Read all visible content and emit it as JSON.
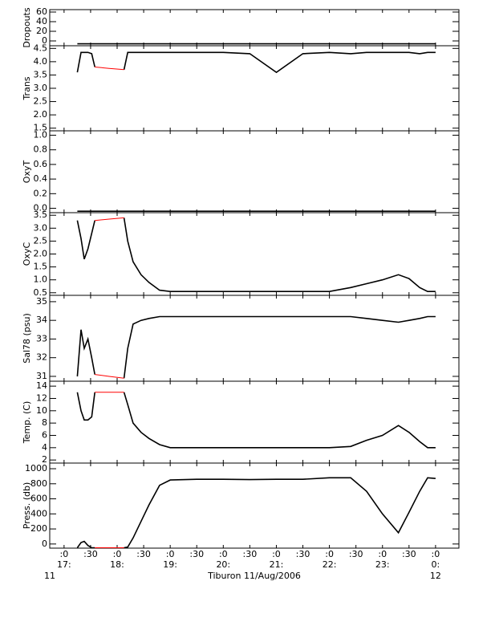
{
  "x_axis": {
    "xlim": [
      16.73,
      24.44
    ],
    "xticks": [
      {
        "value": 17,
        "label": ":0"
      },
      {
        "value": 17.5,
        "label": ":30"
      },
      {
        "value": 18,
        "label": ":0"
      },
      {
        "value": 18.5,
        "label": ":30"
      },
      {
        "value": 19,
        "label": ":0"
      },
      {
        "value": 19.5,
        "label": ":30"
      },
      {
        "value": 20,
        "label": ":0"
      },
      {
        "value": 20.5,
        "label": ":30"
      },
      {
        "value": 21,
        "label": ":0"
      },
      {
        "value": 21.5,
        "label": ":30"
      },
      {
        "value": 22,
        "label": ":0"
      },
      {
        "value": 22.5,
        "label": ":30"
      },
      {
        "value": 23,
        "label": ":0"
      },
      {
        "value": 23.5,
        "label": ":30"
      },
      {
        "value": 24,
        "label": ":0"
      }
    ],
    "hour_labels": [
      {
        "value": 17,
        "label": "17:"
      },
      {
        "value": 18,
        "label": "18:"
      },
      {
        "value": 19,
        "label": "19:"
      },
      {
        "value": 20,
        "label": "20:"
      },
      {
        "value": 21,
        "label": "21:"
      },
      {
        "value": 22,
        "label": "22:"
      },
      {
        "value": 23,
        "label": "23:"
      },
      {
        "value": 24,
        "label": "0:"
      }
    ],
    "day_labels": [
      {
        "value": 16.73,
        "label": "11"
      },
      {
        "value": 24,
        "label": "12"
      }
    ],
    "xlabel": "Tiburon 11/Aug/2006"
  },
  "chart_data": [
    {
      "type": "line",
      "ylabel": "Dropouts",
      "ylim": [
        -10,
        65
      ],
      "yticks": [
        0,
        20,
        40,
        60
      ],
      "x": [
        17.25,
        17.32,
        17.38,
        17.45,
        17.52,
        17.58,
        17.85,
        18.13,
        18.2,
        18.3,
        18.45,
        18.6,
        18.8,
        19.0,
        19.5,
        20.0,
        20.5,
        21.0,
        21.5,
        22.0,
        22.4,
        22.7,
        23.0,
        23.3,
        23.5,
        23.7,
        23.85,
        24.0
      ],
      "series": [
        {
          "color": "#000000",
          "values": [
            -6,
            -6,
            -6,
            -6,
            -6,
            -6,
            -6,
            -6,
            -6,
            -6,
            -6,
            -6,
            -6,
            -6,
            -6,
            -6,
            -6,
            -6,
            -6,
            -6,
            -6,
            -6,
            -6,
            -6,
            -6,
            -6,
            -6,
            -6
          ]
        }
      ]
    },
    {
      "type": "line",
      "ylabel": "Trans",
      "ylim": [
        1.4,
        4.6
      ],
      "yticks": [
        1.5,
        {
          "value": 2,
          "label": "2.0"
        },
        2.5,
        {
          "value": 3,
          "label": "3.0"
        },
        3.5,
        {
          "value": 4,
          "label": "4.0"
        },
        4.5
      ],
      "x": [
        17.25,
        17.32,
        17.38,
        17.45,
        17.52,
        17.58,
        17.85,
        18.13,
        18.2,
        18.3,
        18.45,
        18.6,
        18.8,
        19.0,
        19.5,
        20.0,
        20.5,
        21.0,
        21.5,
        22.0,
        22.4,
        22.7,
        23.0,
        23.3,
        23.5,
        23.7,
        23.85,
        24.0
      ],
      "series": [
        {
          "color": "#000000",
          "values": [
            3.6,
            4.35,
            4.35,
            4.35,
            4.3,
            3.8,
            null,
            3.7,
            4.35,
            4.35,
            4.35,
            4.35,
            4.35,
            4.35,
            4.35,
            4.35,
            4.3,
            3.6,
            4.3,
            4.35,
            4.3,
            4.35,
            4.35,
            4.35,
            4.35,
            4.3,
            4.35,
            4.35
          ]
        },
        {
          "color": "#ff0000",
          "values": [
            null,
            null,
            null,
            null,
            null,
            3.8,
            3.75,
            3.7,
            null,
            null,
            null,
            null,
            null,
            null,
            null,
            null,
            null,
            null,
            null,
            null,
            null,
            null,
            null,
            null,
            null,
            null,
            null,
            null
          ]
        }
      ]
    },
    {
      "type": "line",
      "ylabel": "OxyT",
      "ylim": [
        -0.06,
        1.06
      ],
      "yticks": [
        {
          "value": 0,
          "label": "0.0"
        },
        0.2,
        0.4,
        0.6,
        0.8,
        {
          "value": 1,
          "label": "1.0"
        }
      ],
      "x": [
        17.25,
        17.32,
        17.38,
        17.45,
        17.52,
        17.58,
        17.85,
        18.13,
        18.2,
        18.3,
        18.45,
        18.6,
        18.8,
        19.0,
        19.5,
        20.0,
        20.5,
        21.0,
        21.5,
        22.0,
        22.4,
        22.7,
        23.0,
        23.3,
        23.5,
        23.7,
        23.85,
        24.0
      ],
      "series": [
        {
          "color": "#000000",
          "values": [
            -0.04,
            -0.04,
            -0.04,
            -0.04,
            -0.04,
            -0.04,
            -0.04,
            -0.04,
            -0.04,
            -0.04,
            -0.04,
            -0.04,
            -0.04,
            -0.04,
            -0.04,
            -0.04,
            -0.04,
            -0.04,
            -0.04,
            -0.04,
            -0.04,
            -0.04,
            -0.04,
            -0.04,
            -0.04,
            -0.04,
            -0.04,
            -0.04
          ]
        }
      ]
    },
    {
      "type": "line",
      "ylabel": "OxyC",
      "ylim": [
        0.4,
        3.6
      ],
      "yticks": [
        0.5,
        {
          "value": 1,
          "label": "1.0"
        },
        1.5,
        {
          "value": 2,
          "label": "2.0"
        },
        2.5,
        {
          "value": 3,
          "label": "3.0"
        },
        3.5
      ],
      "x": [
        17.25,
        17.32,
        17.38,
        17.45,
        17.52,
        17.58,
        17.85,
        18.13,
        18.2,
        18.3,
        18.45,
        18.6,
        18.8,
        19.0,
        19.5,
        20.0,
        20.5,
        21.0,
        21.5,
        22.0,
        22.4,
        22.7,
        23.0,
        23.3,
        23.5,
        23.7,
        23.85,
        24.0
      ],
      "series": [
        {
          "color": "#000000",
          "values": [
            3.3,
            2.6,
            1.8,
            2.2,
            2.8,
            3.3,
            null,
            3.4,
            2.5,
            1.7,
            1.2,
            0.9,
            0.6,
            0.55,
            0.55,
            0.55,
            0.55,
            0.55,
            0.55,
            0.55,
            0.7,
            0.85,
            1.0,
            1.2,
            1.05,
            0.7,
            0.55,
            0.55
          ]
        },
        {
          "color": "#ff0000",
          "values": [
            null,
            null,
            null,
            null,
            null,
            3.3,
            3.35,
            3.4,
            null,
            null,
            null,
            null,
            null,
            null,
            null,
            null,
            null,
            null,
            null,
            null,
            null,
            null,
            null,
            null,
            null,
            null,
            null,
            null
          ]
        }
      ]
    },
    {
      "type": "line",
      "ylabel": "Sal78 (psu)",
      "ylim": [
        30.74,
        35.34
      ],
      "yticks": [
        31,
        32,
        33,
        34,
        35
      ],
      "x": [
        17.25,
        17.32,
        17.38,
        17.45,
        17.52,
        17.58,
        17.85,
        18.13,
        18.2,
        18.3,
        18.45,
        18.6,
        18.8,
        19.0,
        19.5,
        20.0,
        20.5,
        21.0,
        21.5,
        22.0,
        22.4,
        22.7,
        23.0,
        23.3,
        23.5,
        23.7,
        23.85,
        24.0
      ],
      "series": [
        {
          "color": "#000000",
          "values": [
            31,
            33.5,
            32.5,
            33,
            32,
            31.1,
            null,
            30.9,
            32.5,
            33.8,
            34,
            34.1,
            34.2,
            34.2,
            34.2,
            34.2,
            34.2,
            34.2,
            34.2,
            34.2,
            34.2,
            34.1,
            34,
            33.9,
            34,
            34.1,
            34.2,
            34.2
          ]
        },
        {
          "color": "#ff0000",
          "values": [
            null,
            null,
            null,
            null,
            null,
            31.1,
            31,
            30.9,
            null,
            null,
            null,
            null,
            null,
            null,
            null,
            null,
            null,
            null,
            null,
            null,
            null,
            null,
            null,
            null,
            null,
            null,
            null,
            null
          ]
        }
      ]
    },
    {
      "type": "line",
      "ylabel": "Temp. (C)",
      "ylim": [
        1.5,
        14.8
      ],
      "yticks": [
        2,
        4,
        6,
        8,
        10,
        12,
        14
      ],
      "x": [
        17.25,
        17.32,
        17.38,
        17.45,
        17.52,
        17.58,
        17.85,
        18.13,
        18.2,
        18.3,
        18.45,
        18.6,
        18.8,
        19.0,
        19.5,
        20.0,
        20.5,
        21.0,
        21.5,
        22.0,
        22.4,
        22.7,
        23.0,
        23.3,
        23.5,
        23.7,
        23.85,
        24.0
      ],
      "series": [
        {
          "color": "#000000",
          "values": [
            13,
            10,
            8.5,
            8.5,
            9,
            13,
            null,
            13,
            11,
            8,
            6.5,
            5.5,
            4.5,
            4,
            4,
            4,
            4,
            4,
            4,
            4,
            4.2,
            5.2,
            6,
            7.6,
            6.5,
            5,
            4,
            4
          ]
        },
        {
          "color": "#ff0000",
          "values": [
            null,
            null,
            null,
            null,
            null,
            13,
            13,
            13,
            null,
            null,
            null,
            null,
            null,
            null,
            null,
            null,
            null,
            null,
            null,
            null,
            null,
            null,
            null,
            null,
            null,
            null,
            null,
            null
          ]
        }
      ]
    },
    {
      "type": "line",
      "ylabel": "Press. (db)",
      "ylim": [
        -55,
        1075
      ],
      "yticks": [
        0,
        200,
        400,
        600,
        800,
        1000
      ],
      "x": [
        17.25,
        17.32,
        17.38,
        17.45,
        17.52,
        17.58,
        17.85,
        18.13,
        18.2,
        18.3,
        18.45,
        18.6,
        18.8,
        19.0,
        19.5,
        20.0,
        20.5,
        21.0,
        21.5,
        22.0,
        22.4,
        22.7,
        23.0,
        23.3,
        23.5,
        23.7,
        23.85,
        24.0
      ],
      "series": [
        {
          "color": "#000000",
          "values": [
            -50,
            20,
            35,
            -20,
            -50,
            -50,
            null,
            -50,
            -40,
            80,
            300,
            520,
            780,
            850,
            860,
            860,
            855,
            860,
            860,
            880,
            880,
            700,
            400,
            150,
            420,
            700,
            880,
            870
          ]
        },
        {
          "color": "#ff0000",
          "values": [
            null,
            null,
            null,
            null,
            null,
            -50,
            -50,
            -50,
            null,
            null,
            null,
            null,
            null,
            null,
            null,
            null,
            null,
            null,
            null,
            null,
            null,
            null,
            null,
            null,
            null,
            null,
            null,
            null
          ]
        }
      ]
    }
  ]
}
